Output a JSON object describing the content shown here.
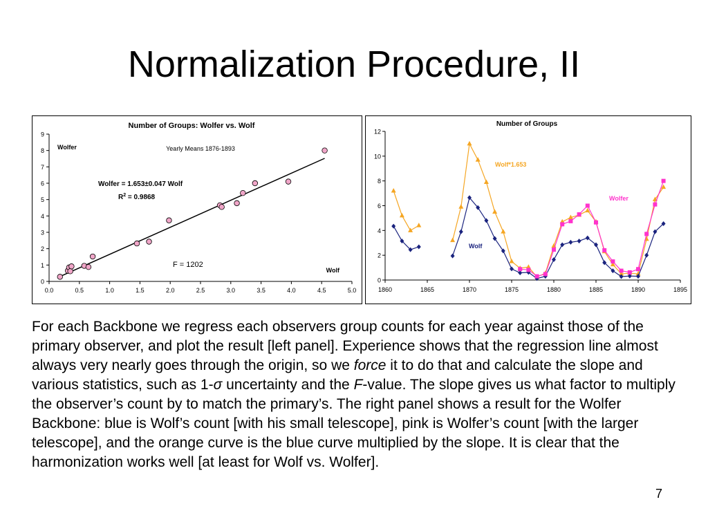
{
  "slide": {
    "title": "Normalization Procedure, II",
    "page_number": "7",
    "body": {
      "p1": "For each Backbone we regress each observers group counts for each year against those of the primary observer, and plot the result [left panel]. Experience shows that the regression line almost always very nearly goes through the origin, so we ",
      "force": "force",
      "p2": " it to do that and calculate the slope and various statistics, such as 1-",
      "sigma": "σ",
      "p3": " uncertainty and the ",
      "F": "F",
      "p4": "-value. The slope gives us what factor to multiply the observer’s count by to match the primary’s. The right panel shows a result for the Wolfer Backbone: blue is Wolf’s count [with his small telescope], pink is Wolfer’s count [with the larger telescope], and the orange curve is the blue curve multiplied by the slope. It is clear that the harmonization works well [at least for Wolf vs. Wolfer]."
    }
  },
  "chart_data": [
    {
      "type": "scatter",
      "title": "Number of Groups: Wolfer vs. Wolf",
      "subtitle": "Yearly Means 1876-1893",
      "xlabel": "Wolf",
      "ylabel": "Wolfer",
      "xlim": [
        0,
        5
      ],
      "ylim": [
        0,
        9
      ],
      "xticks": [
        "0.0",
        "0.5",
        "1.0",
        "1.5",
        "2.0",
        "2.5",
        "3.0",
        "3.5",
        "4.0",
        "4.5",
        "5.0"
      ],
      "yticks": [
        "0",
        "1",
        "2",
        "3",
        "4",
        "5",
        "6",
        "7",
        "8",
        "9"
      ],
      "points": [
        {
          "x": 0.18,
          "y": 0.28
        },
        {
          "x": 0.31,
          "y": 0.65
        },
        {
          "x": 0.33,
          "y": 0.85
        },
        {
          "x": 0.35,
          "y": 0.62
        },
        {
          "x": 0.37,
          "y": 0.92
        },
        {
          "x": 0.58,
          "y": 0.95
        },
        {
          "x": 0.65,
          "y": 0.88
        },
        {
          "x": 0.72,
          "y": 1.52
        },
        {
          "x": 1.45,
          "y": 2.32
        },
        {
          "x": 1.65,
          "y": 2.43
        },
        {
          "x": 1.98,
          "y": 3.73
        },
        {
          "x": 2.82,
          "y": 4.65
        },
        {
          "x": 2.85,
          "y": 4.55
        },
        {
          "x": 3.1,
          "y": 4.78
        },
        {
          "x": 3.2,
          "y": 5.4
        },
        {
          "x": 3.4,
          "y": 6.0
        },
        {
          "x": 3.95,
          "y": 6.1
        },
        {
          "x": 4.55,
          "y": 8.0
        }
      ],
      "fit_line": {
        "slope": 1.653,
        "x_range": [
          0.18,
          4.55
        ]
      },
      "annotations": {
        "equation": "Wolfer = 1.653±0.047 Wolf",
        "r2_prefix": "R",
        "r2_sup": "2",
        "r2_value": " = 0.9868",
        "f_value": "F = 1202"
      },
      "colors": {
        "marker_fill": "#f0a6c8",
        "marker_stroke": "#000000",
        "line": "#000000"
      },
      "grid": false
    },
    {
      "type": "line",
      "title": "Number of Groups",
      "xlim": [
        1860,
        1895
      ],
      "ylim": [
        0,
        12
      ],
      "xticks": [
        "1860",
        "1865",
        "1870",
        "1875",
        "1880",
        "1885",
        "1890",
        "1895"
      ],
      "yticks": [
        "0",
        "2",
        "4",
        "6",
        "8",
        "10",
        "12"
      ],
      "grid": false,
      "series": [
        {
          "name": "Wolf",
          "color": "#1a237e",
          "marker": "diamond",
          "segments": [
            [
              [
                1861,
                4.35
              ],
              [
                1862,
                3.15
              ],
              [
                1863,
                2.45
              ],
              [
                1864,
                2.68
              ]
            ],
            [
              [
                1868,
                1.95
              ],
              [
                1869,
                3.9
              ],
              [
                1870,
                6.65
              ],
              [
                1871,
                5.85
              ],
              [
                1872,
                4.8
              ],
              [
                1873,
                3.35
              ],
              [
                1874,
                2.35
              ],
              [
                1875,
                0.9
              ],
              [
                1876,
                0.58
              ],
              [
                1877,
                0.62
              ],
              [
                1878,
                0.12
              ],
              [
                1879,
                0.3
              ],
              [
                1880,
                1.65
              ],
              [
                1881,
                2.85
              ],
              [
                1882,
                3.05
              ],
              [
                1883,
                3.15
              ],
              [
                1884,
                3.4
              ],
              [
                1885,
                2.85
              ],
              [
                1886,
                1.4
              ],
              [
                1887,
                0.75
              ],
              [
                1888,
                0.28
              ],
              [
                1889,
                0.32
              ],
              [
                1890,
                0.3
              ],
              [
                1891,
                2.0
              ],
              [
                1892,
                3.9
              ],
              [
                1893,
                4.55
              ]
            ]
          ]
        },
        {
          "name": "Wolf*1.653",
          "color": "#f5a623",
          "marker": "triangle",
          "segments": [
            [
              [
                1861,
                7.2
              ],
              [
                1862,
                5.2
              ],
              [
                1863,
                4.0
              ],
              [
                1864,
                4.4
              ]
            ],
            [
              [
                1868,
                3.2
              ],
              [
                1869,
                5.9
              ],
              [
                1870,
                11.0
              ],
              [
                1871,
                9.7
              ],
              [
                1872,
                7.9
              ],
              [
                1873,
                5.5
              ],
              [
                1874,
                3.9
              ],
              [
                1875,
                1.5
              ],
              [
                1876,
                0.95
              ],
              [
                1877,
                1.05
              ],
              [
                1878,
                0.25
              ],
              [
                1879,
                0.55
              ],
              [
                1880,
                2.75
              ],
              [
                1881,
                4.7
              ],
              [
                1882,
                5.05
              ],
              [
                1883,
                5.25
              ],
              [
                1884,
                5.6
              ],
              [
                1885,
                4.7
              ],
              [
                1886,
                2.3
              ],
              [
                1887,
                1.25
              ],
              [
                1888,
                0.5
              ],
              [
                1889,
                0.55
              ],
              [
                1890,
                0.5
              ],
              [
                1891,
                3.3
              ],
              [
                1892,
                6.5
              ],
              [
                1893,
                7.5
              ]
            ]
          ]
        },
        {
          "name": "Wolfer",
          "color": "#ff33cc",
          "marker": "square",
          "segments": [
            [
              [
                1876,
                0.88
              ],
              [
                1877,
                0.82
              ],
              [
                1878,
                0.3
              ],
              [
                1879,
                0.48
              ],
              [
                1880,
                2.45
              ],
              [
                1881,
                4.5
              ],
              [
                1882,
                4.75
              ],
              [
                1883,
                5.3
              ],
              [
                1884,
                6.0
              ],
              [
                1885,
                4.65
              ],
              [
                1886,
                2.4
              ],
              [
                1887,
                1.5
              ],
              [
                1888,
                0.75
              ],
              [
                1889,
                0.62
              ],
              [
                1890,
                0.88
              ],
              [
                1891,
                3.72
              ],
              [
                1892,
                6.1
              ],
              [
                1893,
                8.0
              ]
            ]
          ]
        }
      ]
    }
  ]
}
